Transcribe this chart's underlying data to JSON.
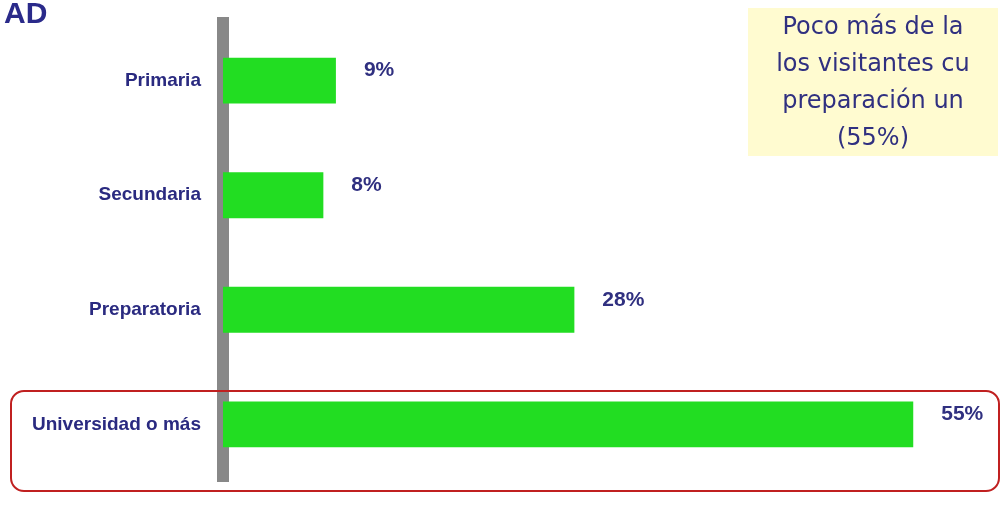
{
  "chart_data": {
    "type": "bar",
    "orientation": "horizontal",
    "title": "AD",
    "categories": [
      "Primaria",
      "Secundaria",
      "Preparatoria",
      "Universidad o más"
    ],
    "values": [
      9,
      8,
      28,
      55
    ],
    "value_labels": [
      "9%",
      "8%",
      "28%",
      "55%"
    ],
    "color": "#22dd22",
    "grid": false,
    "legend": false,
    "annotations": [
      "Poco más de la\nlos visitantes cu\npreparación un\n(55%)"
    ]
  }
}
